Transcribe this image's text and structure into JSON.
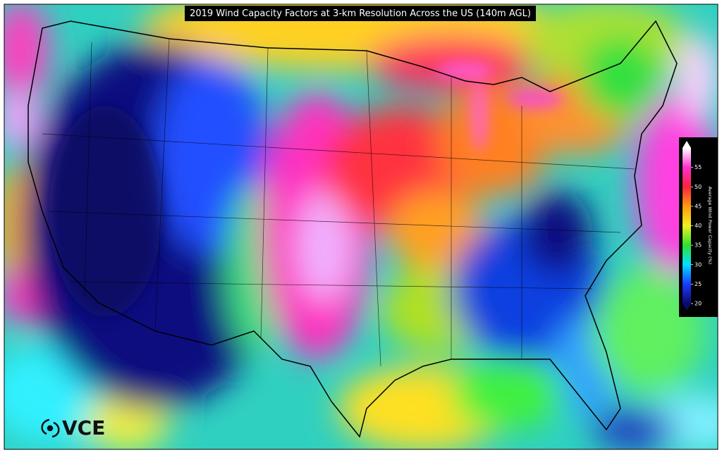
{
  "title": "2019 Wind Capacity Factors at 3-km Resolution Across the US (140m AGL)",
  "colorbar": {
    "label": "Average Wind Power Capacity (%)",
    "lim": [
      20,
      60
    ],
    "ticks": [
      20,
      25,
      30,
      35,
      40,
      45,
      50,
      55
    ]
  },
  "logo": "VCE"
}
